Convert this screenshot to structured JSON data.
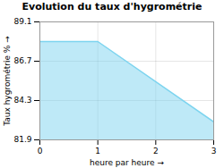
{
  "chart_data": {
    "type": "area",
    "title": "Evolution du taux d'hygrométrie",
    "xlabel": "heure par heure",
    "ylabel": "Taux hygrométrie %",
    "x": [
      0,
      1,
      3
    ],
    "values": [
      87.9,
      87.9,
      83.0
    ],
    "color": "#7dd4ef",
    "xlim": [
      0,
      3
    ],
    "ylim": [
      81.9,
      89.1
    ],
    "xticks": [
      0,
      1,
      2,
      3
    ],
    "yticks": [
      81.9,
      84.3,
      86.7,
      89.1
    ],
    "grid": true
  }
}
